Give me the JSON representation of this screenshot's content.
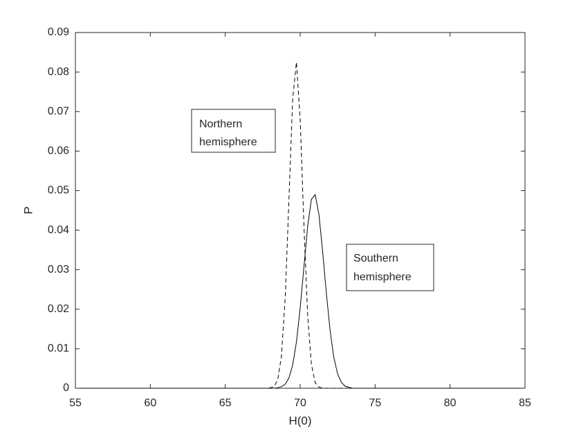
{
  "chart_data": {
    "type": "line",
    "xlabel": "H(0)",
    "ylabel": "P",
    "x": [
      55,
      66,
      67,
      67.5,
      67.75,
      68,
      68.25,
      68.5,
      68.75,
      69,
      69.25,
      69.5,
      69.75,
      70,
      70.25,
      70.5,
      70.75,
      71,
      71.25,
      71.5,
      71.75,
      72,
      72.25,
      72.5,
      72.75,
      73,
      73.5,
      74,
      75,
      85
    ],
    "series": [
      {
        "color": "#000000",
        "dash": "dashed",
        "values": [
          0,
          0,
          0,
          0,
          0,
          0.0001,
          0.0004,
          0.0021,
          0.0081,
          0.0229,
          0.0478,
          0.0732,
          0.0825,
          0.068,
          0.0412,
          0.0184,
          0.006,
          0.0014,
          0.0003,
          0,
          0,
          0,
          0,
          0,
          0,
          0,
          0,
          0,
          0,
          0
        ]
      },
      {
        "color": "#000000",
        "dash": "solid",
        "values": [
          0,
          0,
          0,
          0,
          0,
          0,
          0,
          0.0001,
          0.0004,
          0.001,
          0.0026,
          0.0059,
          0.0117,
          0.0203,
          0.0307,
          0.041,
          0.0478,
          0.049,
          0.044,
          0.0346,
          0.0239,
          0.0145,
          0.0077,
          0.0036,
          0.0015,
          0.0005,
          0,
          0,
          0,
          0
        ]
      }
    ],
    "annotations": [
      {
        "lines": [
          "Northern",
          "hemisphere"
        ]
      },
      {
        "lines": [
          "Southern",
          "hemisphere"
        ]
      }
    ],
    "xlim": [
      55,
      85
    ],
    "xticks": [
      55,
      60,
      65,
      70,
      75,
      80,
      85
    ],
    "ylim": [
      0,
      0.09
    ],
    "yticks": [
      0,
      0.01,
      0.02,
      0.03,
      0.04,
      0.05,
      0.06,
      0.07,
      0.08,
      0.09
    ],
    "grid": false
  }
}
